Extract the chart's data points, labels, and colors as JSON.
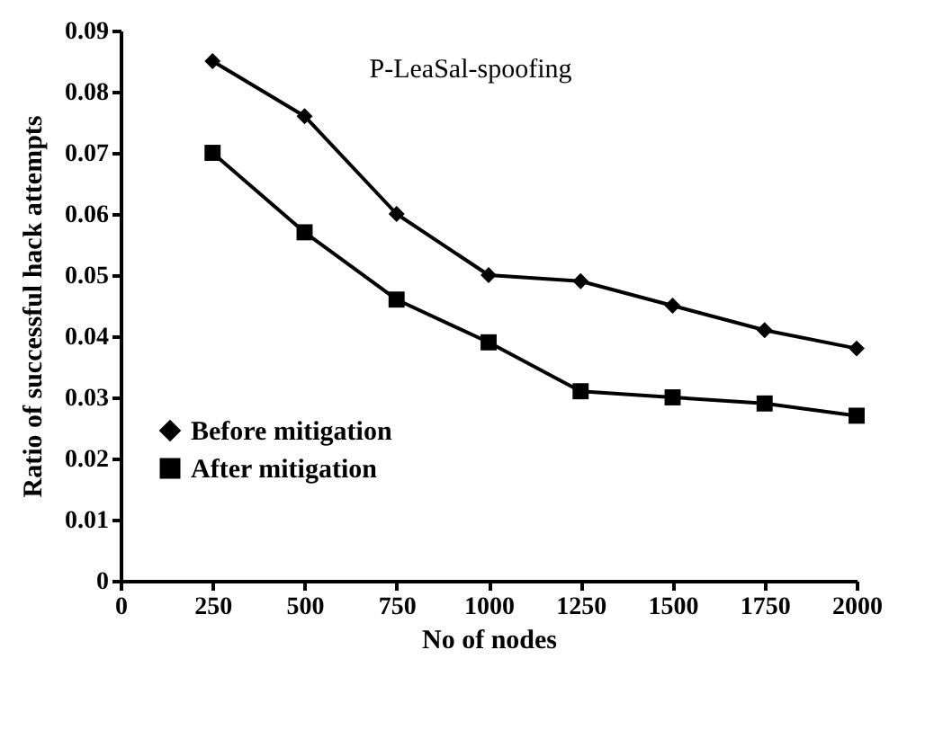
{
  "chart_data": {
    "type": "line",
    "title": "P-LeaSal-spoofing",
    "xlabel": "No of nodes",
    "ylabel": "Ratio of successful hack attempts",
    "x": [
      250,
      500,
      750,
      1000,
      1250,
      1500,
      1750,
      2000
    ],
    "series": [
      {
        "name": "Before mitigation",
        "color": "#000000",
        "marker": "diamond",
        "values": [
          0.085,
          0.076,
          0.06,
          0.05,
          0.049,
          0.045,
          0.041,
          0.038
        ]
      },
      {
        "name": "After mitigation",
        "color": "#000000",
        "marker": "square",
        "values": [
          0.07,
          0.057,
          0.046,
          0.039,
          0.031,
          0.03,
          0.029,
          0.027
        ]
      }
    ],
    "xlim": [
      0,
      2000
    ],
    "xticks": [
      0,
      250,
      500,
      750,
      1000,
      1250,
      1500,
      1750,
      2000
    ],
    "ylim": [
      0,
      0.09
    ],
    "yticks": [
      0,
      0.01,
      0.02,
      0.03,
      0.04,
      0.05,
      0.06,
      0.07,
      0.08,
      0.09
    ],
    "legend": "left",
    "line_style": "solid"
  }
}
